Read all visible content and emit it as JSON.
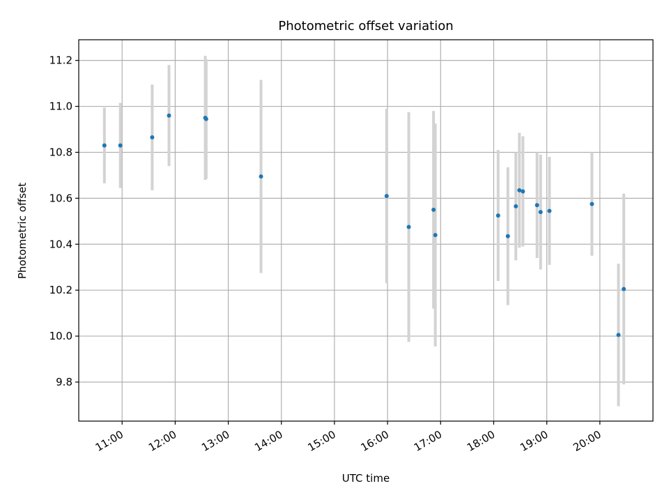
{
  "chart_data": {
    "type": "scatter",
    "title": "Photometric offset variation",
    "xlabel": "UTC time",
    "ylabel": "Photometric offset",
    "grid": true,
    "xlim": [
      "10:11",
      "21:00"
    ],
    "ylim": [
      9.63,
      11.29
    ],
    "x_ticks": [
      "11:00",
      "12:00",
      "13:00",
      "14:00",
      "15:00",
      "16:00",
      "17:00",
      "18:00",
      "19:00",
      "20:00"
    ],
    "y_ticks": [
      9.8,
      10.0,
      10.2,
      10.4,
      10.6,
      10.8,
      11.0,
      11.2
    ],
    "colors": {
      "point": "#1f77b4",
      "errorbar": "#d3d3d3",
      "grid": "#b0b0b0"
    },
    "points": [
      {
        "x": "10:40",
        "y": 10.83,
        "yerr": 0.165
      },
      {
        "x": "10:58",
        "y": 10.83,
        "yerr": 0.185
      },
      {
        "x": "11:34",
        "y": 10.865,
        "yerr": 0.23
      },
      {
        "x": "11:53",
        "y": 10.96,
        "yerr": 0.22
      },
      {
        "x": "12:34",
        "y": 10.95,
        "yerr": 0.27
      },
      {
        "x": "12:35",
        "y": 10.945,
        "yerr": 0.26
      },
      {
        "x": "13:37",
        "y": 10.695,
        "yerr": 0.42
      },
      {
        "x": "15:59",
        "y": 10.61,
        "yerr": 0.38
      },
      {
        "x": "16:24",
        "y": 10.475,
        "yerr": 0.5
      },
      {
        "x": "16:52",
        "y": 10.55,
        "yerr": 0.43
      },
      {
        "x": "16:54",
        "y": 10.44,
        "yerr": 0.485
      },
      {
        "x": "18:05",
        "y": 10.525,
        "yerr": 0.285
      },
      {
        "x": "18:16",
        "y": 10.435,
        "yerr": 0.3
      },
      {
        "x": "18:25",
        "y": 10.565,
        "yerr": 0.235
      },
      {
        "x": "18:29",
        "y": 10.635,
        "yerr": 0.25
      },
      {
        "x": "18:33",
        "y": 10.63,
        "yerr": 0.24
      },
      {
        "x": "18:49",
        "y": 10.57,
        "yerr": 0.23
      },
      {
        "x": "18:53",
        "y": 10.54,
        "yerr": 0.25
      },
      {
        "x": "19:03",
        "y": 10.545,
        "yerr": 0.235
      },
      {
        "x": "19:51",
        "y": 10.575,
        "yerr": 0.225
      },
      {
        "x": "20:21",
        "y": 10.005,
        "yerr": 0.31
      },
      {
        "x": "20:27",
        "y": 10.205,
        "yerr": 0.415
      }
    ]
  }
}
